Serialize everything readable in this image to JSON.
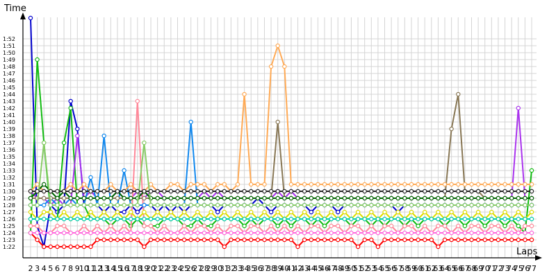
{
  "chart_data": {
    "type": "line",
    "ylabel": "Time",
    "xlabel": "Laps",
    "x": [
      2,
      3,
      4,
      5,
      6,
      7,
      8,
      9,
      10,
      11,
      12,
      13,
      14,
      15,
      16,
      17,
      18,
      19,
      20,
      21,
      22,
      23,
      24,
      25,
      26,
      27,
      28,
      29,
      30,
      31,
      32,
      33,
      34,
      35,
      36,
      37,
      38,
      39,
      40,
      41,
      42,
      43,
      44,
      45,
      46,
      47,
      48,
      49,
      50,
      51,
      52,
      53,
      54,
      55,
      56,
      57,
      58,
      59,
      60,
      61,
      62,
      63,
      64,
      65,
      66,
      67,
      68,
      69,
      70,
      71,
      72,
      73,
      74,
      75,
      76,
      77
    ],
    "y_ticks": [
      "1:22",
      "1:23",
      "1:24",
      "1:25",
      "1:26",
      "1:27",
      "1:28",
      "1:29",
      "1:30",
      "1:31",
      "1:32",
      "1:33",
      "1:34",
      "1:35",
      "1:36",
      "1:37",
      "1:38",
      "1:39",
      "1:40",
      "1:41",
      "1:42",
      "1:43",
      "1:44",
      "1:45",
      "1:46",
      "1:47",
      "1:48",
      "1:49",
      "1:50",
      "1:51",
      "1:52"
    ],
    "ylim_seconds": [
      82,
      52
    ],
    "grid": true,
    "legend": "none",
    "series": [
      {
        "color": "#0000cc",
        "values": [
          115,
          85,
          82,
          88,
          87,
          88,
          103,
          99,
          88,
          88,
          88,
          87,
          88,
          87,
          87,
          88,
          87,
          88,
          88,
          87,
          88,
          87,
          88,
          87,
          88,
          88,
          88,
          88,
          87,
          88,
          88,
          88,
          88,
          88,
          89,
          88,
          87,
          88,
          88,
          88,
          88,
          88,
          87,
          88,
          88,
          88,
          87,
          88,
          88,
          88,
          88,
          88,
          88,
          88,
          88,
          87,
          88,
          88,
          88,
          88,
          88,
          88,
          88,
          88,
          88,
          88,
          88,
          88,
          88,
          88,
          88,
          88,
          88,
          88,
          88,
          88
        ]
      },
      {
        "color": "#ff0000",
        "values": [
          84,
          83,
          82,
          82,
          82,
          82,
          82,
          82,
          82,
          82,
          83,
          83,
          83,
          83,
          83,
          83,
          83,
          82,
          83,
          83,
          83,
          83,
          83,
          83,
          83,
          83,
          83,
          83,
          83,
          82,
          83,
          83,
          83,
          83,
          83,
          83,
          83,
          83,
          83,
          83,
          82,
          83,
          83,
          83,
          83,
          83,
          83,
          83,
          83,
          82,
          83,
          83,
          82,
          83,
          83,
          83,
          83,
          83,
          83,
          83,
          83,
          82,
          83,
          83,
          83,
          83,
          83,
          83,
          83,
          83,
          83,
          83,
          83,
          83,
          83,
          83
        ]
      },
      {
        "color": "#11bb11",
        "values": [
          84,
          109,
          97,
          87,
          86,
          97,
          102,
          88,
          88,
          86,
          86,
          86,
          85,
          86,
          86,
          85,
          86,
          85,
          85,
          85,
          86,
          86,
          86,
          85,
          85,
          86,
          85,
          85,
          86,
          86,
          86,
          86,
          85,
          86,
          85,
          86,
          86,
          85,
          86,
          85,
          86,
          86,
          85,
          86,
          85,
          86,
          86,
          86,
          85,
          86,
          86,
          85,
          86,
          85,
          86,
          86,
          85,
          86,
          85,
          86,
          86,
          86,
          85,
          86,
          86,
          85,
          86,
          86,
          85,
          86,
          86,
          85,
          86,
          85,
          84,
          93
        ]
      },
      {
        "color": "#aa33ee",
        "values": [
          90,
          89,
          89,
          88,
          89,
          88,
          88,
          98,
          89,
          90,
          89,
          89,
          89,
          90,
          89,
          89,
          90,
          89,
          90,
          90,
          89,
          89,
          89,
          89,
          89,
          89,
          90,
          89,
          90,
          89,
          89,
          89,
          89,
          89,
          89,
          89,
          89,
          90,
          89,
          90,
          89,
          89,
          89,
          89,
          89,
          89,
          89,
          89,
          89,
          89,
          89,
          89,
          89,
          89,
          89,
          89,
          89,
          89,
          89,
          89,
          89,
          89,
          89,
          89,
          89,
          89,
          89,
          89,
          89,
          89,
          89,
          89,
          89,
          102,
          89,
          89
        ]
      },
      {
        "color": "#ff8899",
        "values": [
          85,
          85,
          84,
          84,
          85,
          85,
          84,
          84,
          85,
          84,
          85,
          84,
          85,
          84,
          85,
          84,
          103,
          85,
          85,
          84,
          85,
          84,
          84,
          85,
          84,
          85,
          85,
          84,
          85,
          84,
          85,
          85,
          84,
          85,
          85,
          84,
          85,
          84,
          85,
          84,
          85,
          84,
          85,
          85,
          84,
          85,
          85,
          84,
          85,
          85,
          84,
          85,
          84,
          85,
          85,
          84,
          85,
          85,
          84,
          85,
          84,
          85,
          85,
          84,
          85,
          84,
          85,
          85,
          84,
          85,
          85,
          84,
          85,
          84,
          85,
          85
        ]
      },
      {
        "color": "#1188ee",
        "values": [
          88,
          88,
          88,
          89,
          88,
          88,
          89,
          88,
          88,
          92,
          88,
          98,
          88,
          88,
          93,
          88,
          88,
          88,
          88,
          88,
          88,
          88,
          88,
          88,
          100,
          88,
          88,
          88,
          88,
          88,
          88,
          88,
          88,
          88,
          88,
          88,
          88,
          88,
          88,
          88,
          88,
          88,
          88,
          88,
          88,
          88,
          88,
          88,
          88,
          88,
          88,
          88,
          88,
          88,
          88,
          88,
          88,
          88,
          88,
          88,
          88,
          88,
          88,
          88,
          88,
          88,
          88,
          88,
          88,
          88,
          88,
          88,
          88,
          88,
          88,
          88
        ]
      },
      {
        "color": "#887755",
        "values": [
          89,
          89,
          89,
          89,
          89,
          89,
          89,
          89,
          89,
          89,
          89,
          89,
          89,
          89,
          89,
          89,
          89,
          89,
          89,
          89,
          89,
          89,
          89,
          89,
          89,
          89,
          89,
          89,
          89,
          89,
          89,
          89,
          89,
          89,
          89,
          89,
          89,
          100,
          89,
          89,
          89,
          89,
          89,
          89,
          89,
          89,
          89,
          89,
          89,
          89,
          89,
          89,
          89,
          89,
          89,
          89,
          89,
          89,
          89,
          89,
          89,
          89,
          89,
          99,
          104,
          90,
          90,
          90,
          89,
          89,
          89,
          89,
          89,
          89,
          89,
          89
        ]
      },
      {
        "color": "#dddd00",
        "values": [
          87,
          86,
          87,
          87,
          86,
          87,
          86,
          87,
          86,
          87,
          86,
          87,
          86,
          87,
          86,
          87,
          86,
          87,
          86,
          87,
          86,
          87,
          86,
          87,
          86,
          87,
          86,
          87,
          86,
          87,
          86,
          87,
          86,
          87,
          86,
          87,
          86,
          87,
          86,
          87,
          86,
          87,
          86,
          87,
          86,
          87,
          86,
          87,
          86,
          87,
          86,
          87,
          86,
          87,
          86,
          87,
          86,
          87,
          86,
          87,
          86,
          87,
          86,
          87,
          86,
          87,
          86,
          87,
          86,
          87,
          86,
          87,
          86,
          87,
          86,
          87
        ]
      },
      {
        "color": "#ffaa55",
        "values": [
          90,
          91,
          90,
          90,
          90,
          90,
          91,
          90,
          91,
          90,
          90,
          90,
          91,
          90,
          90,
          91,
          90,
          90,
          91,
          90,
          90,
          91,
          91,
          90,
          91,
          91,
          91,
          90,
          91,
          91,
          90,
          91,
          104,
          91,
          91,
          91,
          108,
          111,
          108,
          91,
          91,
          91,
          91,
          91,
          91,
          91,
          91,
          91,
          91,
          91,
          91,
          91,
          91,
          91,
          91,
          91,
          91,
          91,
          91,
          91,
          91,
          91,
          91,
          91,
          91,
          91,
          91,
          91,
          91,
          91,
          91,
          91,
          91,
          91,
          91,
          91
        ]
      },
      {
        "color": "#006600",
        "values": [
          89,
          90,
          91,
          90,
          89,
          90,
          89,
          89,
          89,
          89,
          89,
          89,
          89,
          90,
          89,
          89,
          89,
          90,
          89,
          89,
          89,
          89,
          89,
          89,
          89,
          89,
          89,
          89,
          89,
          89,
          89,
          89,
          89,
          89,
          89,
          89,
          89,
          89,
          89,
          89,
          89,
          89,
          89,
          89,
          89,
          89,
          89,
          89,
          89,
          89,
          89,
          89,
          89,
          89,
          89,
          89,
          89,
          89,
          89,
          89,
          89,
          89,
          89,
          89,
          89,
          89,
          89,
          89,
          89,
          89,
          89,
          89,
          89,
          89,
          89,
          89
        ]
      },
      {
        "color": "#88cc66",
        "values": [
          88,
          88,
          97,
          88,
          88,
          88,
          88,
          88,
          88,
          88,
          88,
          88,
          88,
          88,
          88,
          88,
          88,
          97,
          88,
          88,
          88,
          88,
          88,
          88,
          88,
          88,
          88,
          88,
          88,
          88,
          88,
          88,
          88,
          88,
          88,
          88,
          88,
          88,
          88,
          88,
          88,
          88,
          88,
          88,
          88,
          88,
          88,
          88,
          88,
          88,
          88,
          88,
          88,
          88,
          88,
          88,
          88,
          88,
          88,
          88,
          88,
          88,
          88,
          88,
          88,
          88,
          88,
          88,
          88,
          88,
          88,
          88,
          88,
          88,
          88,
          88
        ]
      },
      {
        "color": "#ff66dd",
        "values": [
          84,
          84,
          84,
          84,
          84,
          84,
          84,
          84,
          84,
          84,
          84,
          84,
          84,
          84,
          84,
          84,
          84,
          84,
          84,
          84,
          84,
          84,
          84,
          84,
          84,
          84,
          84,
          84,
          84,
          84,
          84,
          84,
          84,
          84,
          84,
          84,
          84,
          84,
          84,
          84,
          84,
          84,
          84,
          84,
          84,
          84,
          84,
          84,
          84,
          84,
          84,
          84,
          84,
          84,
          84,
          84,
          84,
          84,
          84,
          84,
          84,
          84,
          84,
          84,
          84,
          84,
          84,
          84,
          84,
          84,
          84,
          84,
          84,
          84,
          84,
          84
        ]
      },
      {
        "color": "#00ccaa",
        "values": [
          86,
          86,
          86,
          86,
          86,
          86,
          86,
          86,
          86,
          86,
          86,
          86,
          86,
          86,
          86,
          86,
          86,
          86,
          86,
          86,
          86,
          86,
          86,
          86,
          86,
          86,
          86,
          86,
          86,
          86,
          86,
          86,
          86,
          86,
          86,
          86,
          86,
          86,
          86,
          86,
          86,
          86,
          86,
          86,
          86,
          86,
          86,
          86,
          86,
          86,
          86,
          86,
          86,
          86,
          86,
          86,
          86,
          86,
          86,
          86,
          86,
          86,
          86,
          86,
          86,
          86,
          86,
          86,
          86,
          86,
          86,
          86,
          86,
          86,
          86,
          86
        ]
      },
      {
        "color": "#222222",
        "values": [
          90,
          90,
          90,
          90,
          90,
          90,
          90,
          90,
          90,
          90,
          90,
          90,
          90,
          90,
          90,
          90,
          90,
          90,
          90,
          90,
          90,
          90,
          90,
          90,
          90,
          90,
          90,
          90,
          90,
          90,
          90,
          90,
          90,
          90,
          90,
          90,
          90,
          90,
          90,
          90,
          90,
          90,
          90,
          90,
          90,
          90,
          90,
          90,
          90,
          90,
          90,
          90,
          90,
          90,
          90,
          90,
          90,
          90,
          90,
          90,
          90,
          90,
          90,
          90,
          90,
          90,
          90,
          90,
          90,
          90,
          90,
          90,
          90,
          90,
          90,
          90
        ]
      }
    ]
  }
}
